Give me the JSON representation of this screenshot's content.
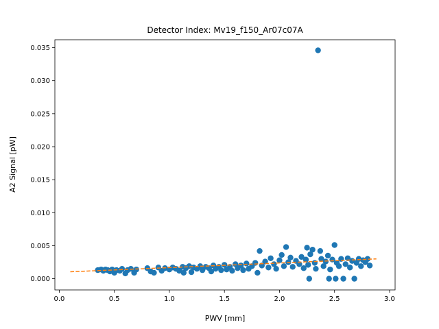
{
  "chart_data": {
    "type": "scatter",
    "title": "Detector Index: Mv19_f150_Ar07c07A",
    "xlabel": "PWV [mm]",
    "ylabel": "A2 Signal [pW]",
    "xlim": [
      -0.04,
      3.05
    ],
    "ylim": [
      -0.0017,
      0.0362
    ],
    "xticks": [
      0.0,
      0.5,
      1.0,
      1.5,
      2.0,
      2.5,
      3.0
    ],
    "xtick_labels": [
      "0.0",
      "0.5",
      "1.0",
      "1.5",
      "2.0",
      "2.5",
      "3.0"
    ],
    "yticks": [
      0.0,
      0.005,
      0.01,
      0.015,
      0.02,
      0.025,
      0.03,
      0.035
    ],
    "ytick_labels": [
      "0.000",
      "0.005",
      "0.010",
      "0.015",
      "0.020",
      "0.025",
      "0.030",
      "0.035"
    ],
    "grid": false,
    "series": [
      {
        "style": "scatter",
        "color": "#1f77b4",
        "points": [
          [
            0.35,
            0.0013
          ],
          [
            0.38,
            0.0014
          ],
          [
            0.4,
            0.0012
          ],
          [
            0.42,
            0.0014
          ],
          [
            0.44,
            0.0013
          ],
          [
            0.46,
            0.0011
          ],
          [
            0.48,
            0.0014
          ],
          [
            0.5,
            0.0009
          ],
          [
            0.52,
            0.0013
          ],
          [
            0.55,
            0.0012
          ],
          [
            0.57,
            0.0015
          ],
          [
            0.6,
            0.0008
          ],
          [
            0.62,
            0.0013
          ],
          [
            0.65,
            0.0015
          ],
          [
            0.68,
            0.0009
          ],
          [
            0.7,
            0.0014
          ],
          [
            0.8,
            0.0016
          ],
          [
            0.83,
            0.0011
          ],
          [
            0.86,
            0.0009
          ],
          [
            0.9,
            0.0017
          ],
          [
            0.93,
            0.0012
          ],
          [
            0.96,
            0.0016
          ],
          [
            1.0,
            0.0014
          ],
          [
            1.03,
            0.0017
          ],
          [
            1.06,
            0.0015
          ],
          [
            1.09,
            0.0012
          ],
          [
            1.12,
            0.0018
          ],
          [
            1.13,
            0.0009
          ],
          [
            1.15,
            0.0016
          ],
          [
            1.18,
            0.0019
          ],
          [
            1.2,
            0.001
          ],
          [
            1.22,
            0.0017
          ],
          [
            1.25,
            0.0015
          ],
          [
            1.28,
            0.0019
          ],
          [
            1.3,
            0.0013
          ],
          [
            1.33,
            0.0018
          ],
          [
            1.36,
            0.0016
          ],
          [
            1.38,
            0.0011
          ],
          [
            1.4,
            0.002
          ],
          [
            1.42,
            0.0015
          ],
          [
            1.45,
            0.0018
          ],
          [
            1.47,
            0.0013
          ],
          [
            1.5,
            0.0021
          ],
          [
            1.52,
            0.0014
          ],
          [
            1.55,
            0.0018
          ],
          [
            1.57,
            0.0012
          ],
          [
            1.6,
            0.0022
          ],
          [
            1.62,
            0.0016
          ],
          [
            1.65,
            0.002
          ],
          [
            1.67,
            0.0013
          ],
          [
            1.7,
            0.0023
          ],
          [
            1.72,
            0.0015
          ],
          [
            1.75,
            0.0019
          ],
          [
            1.78,
            0.0024
          ],
          [
            1.8,
            0.0009
          ],
          [
            1.82,
            0.0042
          ],
          [
            1.84,
            0.002
          ],
          [
            1.87,
            0.0026
          ],
          [
            1.9,
            0.0017
          ],
          [
            1.92,
            0.0031
          ],
          [
            1.95,
            0.0022
          ],
          [
            1.97,
            0.0015
          ],
          [
            2.0,
            0.0028
          ],
          [
            2.02,
            0.0036
          ],
          [
            2.04,
            0.0019
          ],
          [
            2.06,
            0.0048
          ],
          [
            2.08,
            0.0025
          ],
          [
            2.1,
            0.0032
          ],
          [
            2.12,
            0.0018
          ],
          [
            2.15,
            0.0027
          ],
          [
            2.18,
            0.0022
          ],
          [
            2.2,
            0.0033
          ],
          [
            2.22,
            0.0016
          ],
          [
            2.24,
            0.0029
          ],
          [
            2.25,
            0.0047
          ],
          [
            2.26,
            0.0021
          ],
          [
            2.27,
            0.0
          ],
          [
            2.28,
            0.0037
          ],
          [
            2.3,
            0.0044
          ],
          [
            2.32,
            0.0024
          ],
          [
            2.33,
            0.0015
          ],
          [
            2.35,
            0.0346
          ],
          [
            2.37,
            0.0042
          ],
          [
            2.38,
            0.003
          ],
          [
            2.4,
            0.0019
          ],
          [
            2.42,
            0.0026
          ],
          [
            2.44,
            0.0035
          ],
          [
            2.45,
            0.0
          ],
          [
            2.46,
            0.0014
          ],
          [
            2.48,
            0.0029
          ],
          [
            2.5,
            0.0051
          ],
          [
            2.51,
            0.0
          ],
          [
            2.52,
            0.0024
          ],
          [
            2.54,
            0.0019
          ],
          [
            2.56,
            0.003
          ],
          [
            2.58,
            0.0
          ],
          [
            2.6,
            0.0022
          ],
          [
            2.62,
            0.0031
          ],
          [
            2.64,
            0.0017
          ],
          [
            2.66,
            0.0027
          ],
          [
            2.68,
            0.0
          ],
          [
            2.7,
            0.0024
          ],
          [
            2.72,
            0.003
          ],
          [
            2.74,
            0.0019
          ],
          [
            2.76,
            0.0028
          ],
          [
            2.78,
            0.0025
          ],
          [
            2.8,
            0.003
          ],
          [
            2.82,
            0.002
          ]
        ]
      },
      {
        "style": "dashed-line",
        "color": "#ff7f0e",
        "points": [
          [
            0.1,
            0.00105
          ],
          [
            2.88,
            0.003
          ]
        ]
      }
    ]
  }
}
